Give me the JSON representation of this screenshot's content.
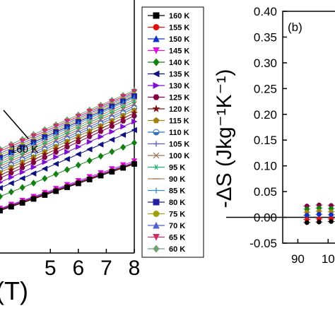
{
  "chart_data": [
    {
      "panel": "a",
      "type": "line",
      "xlabel": "(T)",
      "x_ticks": [
        "5",
        "6",
        "7",
        "8"
      ],
      "xlim": [
        3.2,
        8
      ],
      "annotation": "160 K",
      "grid": false,
      "legend_position": "right",
      "x": [
        3.2,
        3.6,
        4.0,
        4.4,
        4.8,
        5.2,
        5.6,
        6.0,
        6.4,
        6.8,
        7.2,
        7.6,
        8.0
      ],
      "series": [
        {
          "name": "160 K",
          "color": "#000000",
          "marker": "square",
          "start": 60,
          "end": 126
        },
        {
          "name": "155 K",
          "color": "#e01010",
          "marker": "circle",
          "start": 61,
          "end": 127
        },
        {
          "name": "150 K",
          "color": "#1030c8",
          "marker": "triangle-up",
          "start": 62,
          "end": 128
        },
        {
          "name": "145 K",
          "color": "#e010e0",
          "marker": "triangle-down",
          "start": 63,
          "end": 130
        },
        {
          "name": "140 K",
          "color": "#128012",
          "marker": "diamond",
          "start": 80,
          "end": 156
        },
        {
          "name": "135 K",
          "color": "#101080",
          "marker": "triangle-left",
          "start": 92,
          "end": 174
        },
        {
          "name": "130 K",
          "color": "#8010d0",
          "marker": "triangle-right",
          "start": 100,
          "end": 186
        },
        {
          "name": "125 K",
          "color": "#800040",
          "marker": "hexagon",
          "start": 106,
          "end": 194
        },
        {
          "name": "120 K",
          "color": "#801010",
          "marker": "star",
          "start": 110,
          "end": 198
        },
        {
          "name": "115 K",
          "color": "#a08010",
          "marker": "pentagon",
          "start": 114,
          "end": 202
        },
        {
          "name": "110 K",
          "color": "#3070c0",
          "marker": "circle-half",
          "start": 117,
          "end": 205
        },
        {
          "name": "105 K",
          "color": "#6060c0",
          "marker": "plus",
          "start": 120,
          "end": 208
        },
        {
          "name": "100 K",
          "color": "#a07050",
          "marker": "cross",
          "start": 123,
          "end": 211
        },
        {
          "name": "95 K",
          "color": "#20b070",
          "marker": "asterisk",
          "start": 126,
          "end": 214
        },
        {
          "name": "90 K",
          "color": "#b08060",
          "marker": "line",
          "start": 129,
          "end": 217
        },
        {
          "name": "85 K",
          "color": "#3090d0",
          "marker": "vline",
          "start": 132,
          "end": 220
        },
        {
          "name": "80 K",
          "color": "#2020a0",
          "marker": "square",
          "start": 135,
          "end": 222
        },
        {
          "name": "75 K",
          "color": "#a0a010",
          "marker": "circle",
          "start": 138,
          "end": 224
        },
        {
          "name": "70 K",
          "color": "#5060d0",
          "marker": "triangle-up",
          "start": 141,
          "end": 226
        },
        {
          "name": "65 K",
          "color": "#d03060",
          "marker": "triangle-down",
          "start": 144,
          "end": 228
        },
        {
          "name": "60 K",
          "color": "#70a070",
          "marker": "diamond",
          "start": 147,
          "end": 230
        }
      ]
    },
    {
      "panel": "b",
      "type": "scatter",
      "panel_label": "(b)",
      "ylabel": "-ΔS (Jkg⁻¹K⁻¹)",
      "y_ticks": [
        "0.40",
        "0.35",
        "0.30",
        "0.25",
        "0.20",
        "0.15",
        "0.10",
        "0.05",
        "0.00",
        "-0.05"
      ],
      "ylim": [
        -0.05,
        0.4
      ],
      "x_ticks": [
        "90",
        "10"
      ],
      "xlim": [
        85,
        106
      ],
      "baseline_y": 0.0,
      "points": [
        {
          "x": 93,
          "y": 0.022,
          "color": "#800040"
        },
        {
          "x": 93,
          "y": 0.016,
          "color": "#128012"
        },
        {
          "x": 93,
          "y": 0.01,
          "color": "#a08010"
        },
        {
          "x": 93,
          "y": 0.004,
          "color": "#1030c8"
        },
        {
          "x": 93,
          "y": -0.004,
          "color": "#e01010"
        },
        {
          "x": 93,
          "y": -0.01,
          "color": "#000000"
        },
        {
          "x": 97,
          "y": 0.024,
          "color": "#800040"
        },
        {
          "x": 97,
          "y": 0.018,
          "color": "#128012"
        },
        {
          "x": 97,
          "y": 0.012,
          "color": "#a08010"
        },
        {
          "x": 97,
          "y": 0.006,
          "color": "#1030c8"
        },
        {
          "x": 97,
          "y": -0.003,
          "color": "#e01010"
        },
        {
          "x": 97,
          "y": -0.009,
          "color": "#000000"
        },
        {
          "x": 101,
          "y": 0.023,
          "color": "#800040"
        },
        {
          "x": 101,
          "y": 0.017,
          "color": "#128012"
        },
        {
          "x": 101,
          "y": 0.011,
          "color": "#a08010"
        },
        {
          "x": 101,
          "y": 0.005,
          "color": "#1030c8"
        },
        {
          "x": 101,
          "y": -0.003,
          "color": "#e01010"
        },
        {
          "x": 101,
          "y": -0.008,
          "color": "#000000"
        },
        {
          "x": 105,
          "y": 0.021,
          "color": "#800040"
        },
        {
          "x": 105,
          "y": 0.015,
          "color": "#128012"
        },
        {
          "x": 105,
          "y": 0.004,
          "color": "#1030c8"
        },
        {
          "x": 105,
          "y": -0.007,
          "color": "#000000"
        }
      ]
    }
  ]
}
